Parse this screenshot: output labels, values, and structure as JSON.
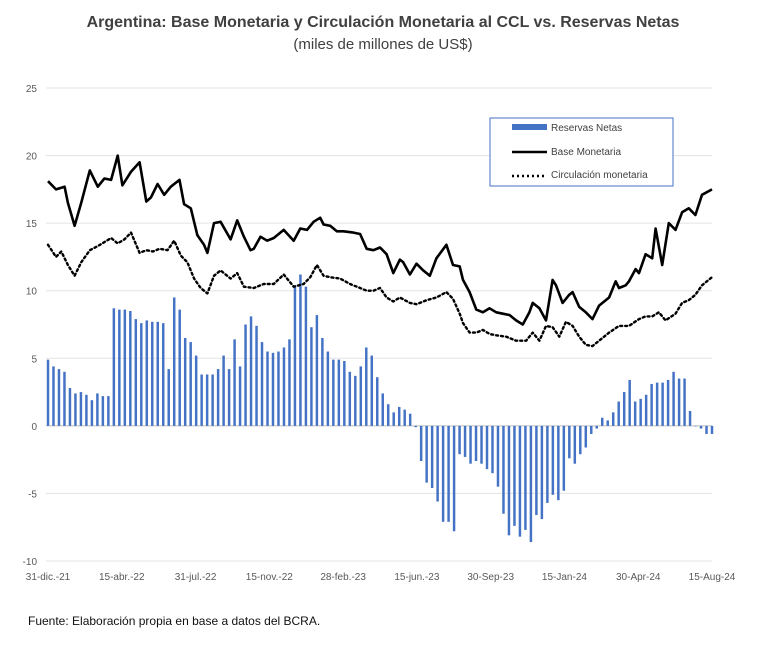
{
  "chart_data": {
    "type": "bar+line",
    "title": "Argentina: Base Monetaria y Circulación Monetaria al CCL vs. Reservas Netas",
    "subtitle": "(miles de millones de US$)",
    "ylim": [
      -10,
      25
    ],
    "yticks": [
      -10,
      -5,
      0,
      5,
      10,
      15,
      20,
      25
    ],
    "x_tick_labels": [
      "31-dic.-21",
      "15-abr.-22",
      "31-jul.-22",
      "15-nov.-22",
      "28-feb.-23",
      "15-jun.-23",
      "30-Sep-23",
      "15-Jan-24",
      "30-Apr-24",
      "15-Aug-24"
    ],
    "grid": true,
    "legend_position": "top-right",
    "series": [
      {
        "name": "Reservas Netas",
        "type": "bar",
        "color": "#4472C4",
        "values": [
          4.9,
          4.4,
          4.2,
          4.0,
          2.8,
          2.4,
          2.5,
          2.3,
          1.9,
          2.4,
          2.2,
          2.2,
          8.7,
          8.6,
          8.6,
          8.5,
          7.9,
          7.6,
          7.8,
          7.7,
          7.7,
          7.6,
          4.2,
          9.5,
          8.6,
          6.5,
          6.2,
          5.2,
          3.8,
          3.8,
          3.8,
          4.2,
          5.2,
          4.2,
          6.4,
          4.4,
          7.5,
          8.1,
          7.4,
          6.2,
          5.5,
          5.4,
          5.5,
          5.8,
          6.4,
          10.4,
          11.2,
          10.3,
          7.3,
          8.2,
          6.5,
          5.5,
          4.9,
          4.9,
          4.8,
          4.0,
          3.7,
          4.4,
          5.8,
          5.2,
          3.6,
          2.4,
          1.6,
          1.0,
          1.4,
          1.2,
          0.9,
          -0.1,
          -2.6,
          -4.2,
          -4.6,
          -5.6,
          -7.1,
          -7.1,
          -7.8,
          -2.1,
          -2.3,
          -2.8,
          -2.6,
          -2.8,
          -3.2,
          -3.5,
          -4.5,
          -6.5,
          -8.1,
          -7.4,
          -8.2,
          -7.7,
          -8.6,
          -6.6,
          -6.9,
          -5.7,
          -5.1,
          -5.5,
          -4.8,
          -2.4,
          -2.8,
          -2.1,
          -1.6,
          -0.6,
          -0.2,
          0.6,
          0.4,
          1.0,
          1.8,
          2.5,
          3.4,
          1.8,
          2.0,
          2.3,
          3.1,
          3.2,
          3.2,
          3.4,
          4.0,
          3.5,
          3.5,
          1.1,
          0.0,
          -0.2,
          -0.6,
          -0.6
        ],
        "x_start": 0.0,
        "x_end": 1.0
      },
      {
        "name": "Base Monetaria",
        "type": "line",
        "color": "#000000",
        "style": "solid",
        "x": [
          0,
          0.012,
          0.025,
          0.03,
          0.04,
          0.05,
          0.063,
          0.075,
          0.085,
          0.095,
          0.105,
          0.112,
          0.125,
          0.138,
          0.148,
          0.155,
          0.165,
          0.175,
          0.185,
          0.198,
          0.205,
          0.215,
          0.225,
          0.235,
          0.24,
          0.25,
          0.26,
          0.275,
          0.285,
          0.295,
          0.305,
          0.31,
          0.32,
          0.33,
          0.34,
          0.355,
          0.37,
          0.38,
          0.39,
          0.4,
          0.41,
          0.415,
          0.425,
          0.435,
          0.445,
          0.46,
          0.47,
          0.48,
          0.49,
          0.5,
          0.51,
          0.52,
          0.53,
          0.535,
          0.545,
          0.555,
          0.565,
          0.575,
          0.585,
          0.6,
          0.61,
          0.62,
          0.625,
          0.635,
          0.645,
          0.655,
          0.665,
          0.675,
          0.685,
          0.695,
          0.705,
          0.715,
          0.725,
          0.73,
          0.74,
          0.75,
          0.76,
          0.765,
          0.775,
          0.785,
          0.79,
          0.8,
          0.81,
          0.82,
          0.83,
          0.845,
          0.855,
          0.86,
          0.87,
          0.875,
          0.885,
          0.89,
          0.9,
          0.91,
          0.915,
          0.925,
          0.935,
          0.945,
          0.955,
          0.965,
          0.975,
          0.985,
          1.0
        ],
        "values": [
          18.1,
          17.5,
          17.7,
          16.5,
          14.8,
          16.5,
          18.9,
          17.7,
          18.3,
          18.2,
          20.0,
          17.8,
          18.8,
          19.5,
          16.6,
          16.9,
          17.9,
          17.1,
          17.7,
          18.2,
          16.4,
          16.1,
          14.1,
          13.4,
          12.8,
          15.0,
          15.1,
          13.8,
          15.2,
          14.0,
          13.0,
          13.1,
          14.0,
          13.7,
          13.9,
          14.5,
          13.7,
          14.6,
          14.5,
          15.1,
          15.4,
          14.9,
          14.8,
          14.4,
          14.4,
          14.3,
          14.2,
          13.1,
          13.0,
          13.2,
          12.7,
          11.3,
          12.3,
          12.1,
          11.2,
          12.0,
          11.5,
          11.1,
          12.4,
          13.4,
          11.9,
          11.8,
          10.8,
          9.9,
          8.6,
          8.4,
          8.7,
          8.4,
          8.3,
          8.2,
          7.8,
          7.5,
          8.4,
          9.1,
          8.7,
          7.8,
          10.8,
          10.4,
          9.1,
          9.7,
          9.9,
          8.8,
          8.4,
          7.9,
          8.9,
          9.5,
          10.7,
          10.2,
          10.4,
          10.7,
          11.6,
          11.3,
          12.7,
          12.4,
          14.6,
          11.9,
          15.0,
          14.5,
          15.8,
          16.1,
          15.6,
          17.1,
          17.5
        ],
        "x_start": 0.0,
        "x_end": 1.0
      },
      {
        "name": "Circulación monetaria",
        "type": "line",
        "color": "#000000",
        "style": "dotted",
        "x": [
          0,
          0.012,
          0.02,
          0.03,
          0.04,
          0.05,
          0.063,
          0.075,
          0.085,
          0.095,
          0.105,
          0.115,
          0.125,
          0.138,
          0.148,
          0.158,
          0.168,
          0.18,
          0.19,
          0.2,
          0.21,
          0.22,
          0.23,
          0.24,
          0.25,
          0.26,
          0.275,
          0.285,
          0.295,
          0.31,
          0.325,
          0.34,
          0.355,
          0.37,
          0.385,
          0.395,
          0.405,
          0.415,
          0.425,
          0.44,
          0.455,
          0.47,
          0.48,
          0.49,
          0.5,
          0.51,
          0.52,
          0.53,
          0.545,
          0.555,
          0.57,
          0.585,
          0.6,
          0.61,
          0.62,
          0.625,
          0.635,
          0.645,
          0.655,
          0.665,
          0.675,
          0.69,
          0.705,
          0.72,
          0.73,
          0.74,
          0.75,
          0.76,
          0.77,
          0.78,
          0.79,
          0.8,
          0.81,
          0.82,
          0.83,
          0.845,
          0.86,
          0.875,
          0.89,
          0.9,
          0.91,
          0.92,
          0.93,
          0.945,
          0.955,
          0.965,
          0.975,
          0.985,
          1.0
        ],
        "values": [
          13.4,
          12.5,
          12.9,
          11.9,
          11.1,
          12.1,
          13.0,
          13.3,
          13.6,
          13.9,
          13.5,
          13.8,
          14.3,
          12.8,
          13.0,
          12.9,
          13.1,
          13.0,
          13.7,
          12.6,
          12.1,
          10.9,
          10.2,
          9.8,
          11.1,
          11.5,
          10.9,
          11.3,
          10.3,
          10.2,
          10.5,
          10.5,
          11.2,
          10.3,
          10.5,
          11.0,
          11.9,
          11.1,
          11.0,
          10.9,
          10.5,
          10.2,
          10.0,
          10.0,
          10.2,
          9.5,
          9.2,
          9.5,
          9.1,
          9.0,
          9.3,
          9.5,
          9.9,
          9.4,
          8.3,
          7.6,
          6.9,
          6.9,
          7.1,
          6.8,
          6.7,
          6.6,
          6.3,
          6.3,
          6.9,
          6.3,
          7.4,
          7.3,
          6.6,
          7.7,
          7.4,
          6.6,
          6.0,
          5.9,
          6.3,
          6.9,
          7.4,
          7.4,
          7.9,
          8.1,
          8.1,
          8.4,
          7.8,
          8.3,
          9.1,
          9.3,
          9.7,
          10.4,
          11.0
        ],
        "x_start": 0.0,
        "x_end": 1.0
      }
    ]
  },
  "footer": {
    "source": "Fuente: Elaboración propia en base a datos del BCRA."
  }
}
